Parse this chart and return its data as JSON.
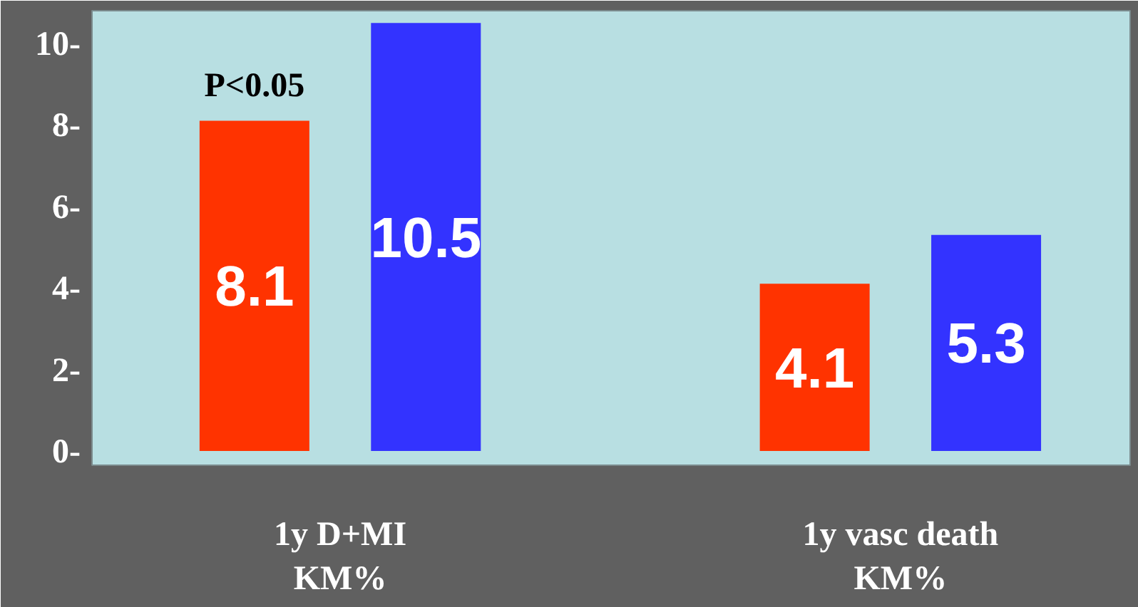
{
  "chart_data": {
    "type": "bar",
    "categories": [
      "1y D+MI\nKM%",
      "1y vasc death\nKM%"
    ],
    "series": [
      {
        "color": "#ff3300",
        "values": [
          8.1,
          4.1
        ]
      },
      {
        "color": "#3333ff",
        "values": [
          10.5,
          5.3
        ]
      }
    ],
    "ylim": [
      -0.35,
      10.8
    ],
    "yticks": [
      {
        "value": 0,
        "label": "0-"
      },
      {
        "value": 2,
        "label": "2-"
      },
      {
        "value": 4,
        "label": "4-"
      },
      {
        "value": 6,
        "label": "6-"
      },
      {
        "value": 8,
        "label": "8-"
      },
      {
        "value": 10,
        "label": "10-"
      }
    ],
    "annotations": [
      "P<0.05"
    ],
    "data_labels": true
  }
}
